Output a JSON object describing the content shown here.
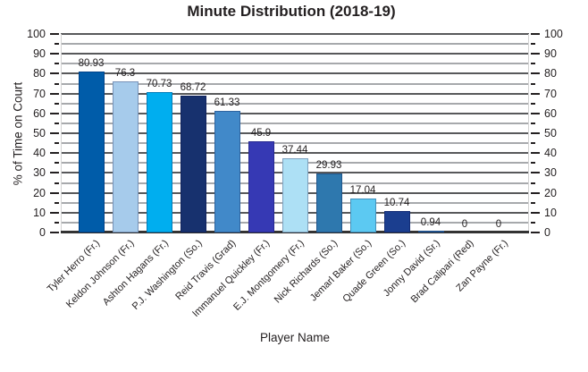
{
  "title": "Minute Distribution (2018-19)",
  "chart_data": {
    "type": "bar",
    "title": "Minute Distribution (2018-19)",
    "xlabel": "Player Name",
    "ylabel": "% of Time on Court",
    "ylim": [
      0,
      100
    ],
    "y_major_step": 10,
    "y_minor_step": 5,
    "grid": true,
    "dual_y_axis": true,
    "categories": [
      "Tyler Herro (Fr.)",
      "Keldon Johnson (Fr.)",
      "Ashton Hagans (Fr.)",
      "P.J. Washington (So.)",
      "Reid Travis (Grad)",
      "Immanuel Quickley (Fr.)",
      "E.J. Montgomery (Fr.)",
      "Nick Richards (So.)",
      "Jemarl Baker (So.)",
      "Quade Green (So.)",
      "Jonny David (Sr.)",
      "Brad Calipari (Red)",
      "Zan Payne (Fr.)"
    ],
    "values": [
      80.93,
      76.3,
      70.73,
      68.72,
      61.33,
      45.9,
      37.44,
      29.93,
      17.04,
      10.74,
      0.94,
      0,
      0
    ],
    "value_labels": [
      "80.93",
      "76.3",
      "70.73",
      "68.72",
      "61.33",
      "45.9",
      "37.44",
      "29.93",
      "17.04",
      "10.74",
      "0.94",
      "0",
      "0"
    ],
    "bar_colors": [
      "#005CA9",
      "#A6CBEB",
      "#00AEEF",
      "#17316E",
      "#4189C9",
      "#3639B4",
      "#ADE0F5",
      "#2E78AE",
      "#5CC9F2",
      "#1B3E8F",
      "#2D6EA9",
      "#4189C9",
      "#005CA9"
    ],
    "colors": {
      "major_grid": "#58595B",
      "minor_grid": "#A7A9AC",
      "axis_line": "#333333",
      "text": "#231F20"
    }
  }
}
